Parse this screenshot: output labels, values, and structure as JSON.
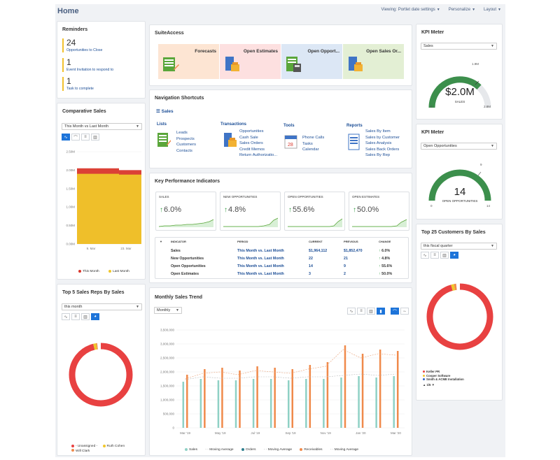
{
  "header": {
    "title": "Home",
    "menus": [
      "Viewing: Portlet date settings",
      "Personalize",
      "Layout"
    ]
  },
  "reminders": {
    "title": "Reminders",
    "items": [
      {
        "count": "24",
        "label": "Opportunities to Close"
      },
      {
        "count": "1",
        "label": "Event Invitation to respond to"
      },
      {
        "count": "1",
        "label": "Task to complete"
      }
    ]
  },
  "comparative_sales": {
    "title": "Comparative Sales",
    "select": "This Month vs Last Month",
    "legend": [
      "This Month",
      "Last Month"
    ]
  },
  "top_reps": {
    "title": "Top 5 Sales Reps By Sales",
    "select": "this month",
    "legend": [
      "- Unassigned -",
      "Ruth Cohen",
      "Will Clark"
    ]
  },
  "suiteaccess": {
    "title": "SuiteAccess",
    "tiles": [
      {
        "label": "Forecasts",
        "color": "#fde5d3"
      },
      {
        "label": "Open Estimates",
        "color": "#fde0e0"
      },
      {
        "label": "Open Opport...",
        "color": "#dce7f5"
      },
      {
        "label": "Open Sales Or...",
        "color": "#e3efd4"
      }
    ]
  },
  "nav_shortcuts": {
    "title": "Navigation Shortcuts",
    "section": "Sales",
    "groups": [
      {
        "title": "Lists",
        "links": [
          "Leads",
          "Prospects",
          "Customers",
          "Contacts"
        ]
      },
      {
        "title": "Transactions",
        "links": [
          "Opportunities",
          "Cash Sale",
          "Sales Orders",
          "Credit Memos",
          "Return Authorizatio..."
        ]
      },
      {
        "title": "Tools",
        "links": [
          "Phone Calls",
          "Tasks",
          "Calendar"
        ]
      },
      {
        "title": "Reports",
        "links": [
          "Sales By Item",
          "Sales by Customer",
          "Sales Analysis",
          "Sales Back Orders",
          "Sales By Rep"
        ]
      }
    ]
  },
  "kpi": {
    "title": "Key Performance Indicators",
    "boxes": [
      {
        "label": "SALES",
        "value": "6.0%"
      },
      {
        "label": "NEW OPPORTUNITIES",
        "value": "4.8%"
      },
      {
        "label": "OPEN OPPORTUNITIES",
        "value": "55.6%"
      },
      {
        "label": "OPEN ESTIMATES",
        "value": "50.0%"
      }
    ],
    "columns": [
      "INDICATOR",
      "PERIOD",
      "CURRENT",
      "PREVIOUS",
      "CHANGE"
    ],
    "rows": [
      {
        "indicator": "Sales",
        "period": "This Month vs. Last Month",
        "current": "$1,964,112",
        "previous": "$1,852,470",
        "change": "6.0%"
      },
      {
        "indicator": "New Opportunities",
        "period": "This Month vs. Last Month",
        "current": "22",
        "previous": "21",
        "change": "4.8%"
      },
      {
        "indicator": "Open Opportunities",
        "period": "This Month vs. Last Month",
        "current": "14",
        "previous": "9",
        "change": "55.6%"
      },
      {
        "indicator": "Open Estimates",
        "period": "This Month vs. Last Month",
        "current": "3",
        "previous": "2",
        "change": "50.0%"
      }
    ]
  },
  "monthly_trend": {
    "title": "Monthly Sales Trend",
    "select": "Monthly",
    "legend": [
      "Sales",
      "Moving Average",
      "Orders",
      "Moving Average",
      "Receivables",
      "Moving Average"
    ]
  },
  "kpi_meter_1": {
    "title": "KPI Meter",
    "select": "Sales",
    "value": "$2.0M",
    "label": "SALES",
    "min": "0",
    "max": "2.8M",
    "target": "1.9M"
  },
  "kpi_meter_2": {
    "title": "KPI Meter",
    "select": "Open Opportunities",
    "value": "14",
    "label": "OPEN OPPORTUNITIES",
    "min": "0",
    "max": "14",
    "target": "9"
  },
  "top_customers": {
    "title": "Top 25 Customers By Sales",
    "select": "this fiscal quarter",
    "legend": [
      "Keller PR",
      "Cooper Software",
      "Smith & ACME Installation"
    ],
    "pager": "1/5"
  },
  "chart_data": [
    {
      "type": "bar",
      "title": "Comparative Sales",
      "categories": [
        "9. Mar",
        "23. Mar"
      ],
      "ylim": [
        0,
        2500000
      ],
      "yticks": [
        "0.00M",
        "0.50M",
        "1.00M",
        "1.50M",
        "2.00M",
        "2.50M"
      ],
      "series": [
        {
          "name": "This Month",
          "color": "#d9362b",
          "values": [
            2050000,
            2000000
          ]
        },
        {
          "name": "Last Month",
          "color": "#f0c62a",
          "values": [
            1900000,
            1880000
          ]
        }
      ]
    },
    {
      "type": "line",
      "title": "Monthly Sales Trend",
      "x": [
        "Mar '19",
        "Apr",
        "May",
        "Jun",
        "Jul '19",
        "Aug",
        "Sep",
        "Oct",
        "Nov '19",
        "Dec",
        "Jan '20",
        "Feb",
        "Mar '20"
      ],
      "xticks": [
        "Mar '19",
        "May '19",
        "Jul '19",
        "Sep '19",
        "Nov '19",
        "Jan '20",
        "Mar '20"
      ],
      "ylim": [
        0,
        3500000
      ],
      "yticks": [
        "0",
        "500,000",
        "1,000,000",
        "1,500,000",
        "2,000,000",
        "2,500,000",
        "3,000,000",
        "3,500,000"
      ],
      "series": [
        {
          "name": "Sales",
          "color": "#8fd1c5",
          "values": [
            1650000,
            1750000,
            1700000,
            1700000,
            1750000,
            1750000,
            1700000,
            1750000,
            1750000,
            1800000,
            1850000,
            1800000,
            1850000
          ]
        },
        {
          "name": "Orders",
          "color": "#2f7f8f",
          "values": [
            0,
            0,
            0,
            0,
            0,
            0,
            0,
            0,
            0,
            0,
            0,
            0,
            0
          ]
        },
        {
          "name": "Receivables",
          "color": "#f08a4b",
          "values": [
            1900000,
            2100000,
            2150000,
            2050000,
            2200000,
            2150000,
            2100000,
            2250000,
            2350000,
            2950000,
            2650000,
            2800000,
            2750000
          ]
        }
      ]
    },
    {
      "type": "pie",
      "title": "Top 5 Sales Reps By Sales",
      "labels": [
        "- Unassigned -",
        "Ruth Cohen",
        "Will Clark"
      ],
      "values": [
        98,
        1.5,
        0.5
      ],
      "colors": [
        "#e84141",
        "#f0c62a",
        "#f08a4b"
      ]
    },
    {
      "type": "pie",
      "title": "Top 25 Customers By Sales",
      "labels": [
        "Keller PR",
        "Cooper Software",
        "Smith & ACME Installation"
      ],
      "values": [
        97.5,
        1.5,
        1.0
      ],
      "colors": [
        "#e84141",
        "#f0c62a",
        "#f08a4b"
      ]
    }
  ]
}
